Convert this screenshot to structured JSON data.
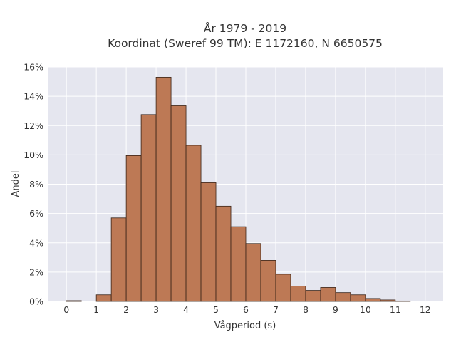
{
  "chart_data": {
    "type": "bar",
    "title_line1": "År 1979 - 2019",
    "title_line2": "Koordinat (Sweref 99 TM): E 1172160, N 6650575",
    "xlabel": "Vågperiod (s)",
    "ylabel": "Andel",
    "xlim": [
      -0.6,
      12.6
    ],
    "ylim": [
      0,
      16
    ],
    "x_ticks": [
      0,
      1,
      2,
      3,
      4,
      5,
      6,
      7,
      8,
      9,
      10,
      11,
      12
    ],
    "y_ticks": [
      0,
      2,
      4,
      6,
      8,
      10,
      12,
      14,
      16
    ],
    "y_tick_suffix": "%",
    "bin_width": 0.5,
    "bins": [
      {
        "start": 0.0,
        "value": 0.05
      },
      {
        "start": 0.5,
        "value": 0.0
      },
      {
        "start": 1.0,
        "value": 0.45
      },
      {
        "start": 1.5,
        "value": 5.7
      },
      {
        "start": 2.0,
        "value": 9.95
      },
      {
        "start": 2.5,
        "value": 12.75
      },
      {
        "start": 3.0,
        "value": 15.3
      },
      {
        "start": 3.5,
        "value": 13.35
      },
      {
        "start": 4.0,
        "value": 10.65
      },
      {
        "start": 4.5,
        "value": 8.1
      },
      {
        "start": 5.0,
        "value": 6.5
      },
      {
        "start": 5.5,
        "value": 5.1
      },
      {
        "start": 6.0,
        "value": 3.95
      },
      {
        "start": 6.5,
        "value": 2.8
      },
      {
        "start": 7.0,
        "value": 1.85
      },
      {
        "start": 7.5,
        "value": 1.05
      },
      {
        "start": 8.0,
        "value": 0.75
      },
      {
        "start": 8.5,
        "value": 0.95
      },
      {
        "start": 9.0,
        "value": 0.6
      },
      {
        "start": 9.5,
        "value": 0.45
      },
      {
        "start": 10.0,
        "value": 0.2
      },
      {
        "start": 10.5,
        "value": 0.1
      },
      {
        "start": 11.0,
        "value": 0.03
      }
    ],
    "colors": {
      "bar_fill": "#bd7955",
      "bar_stroke": "#3a2418",
      "plot_bg": "#e5e6ef",
      "grid": "#ffffff"
    },
    "grid": true
  }
}
